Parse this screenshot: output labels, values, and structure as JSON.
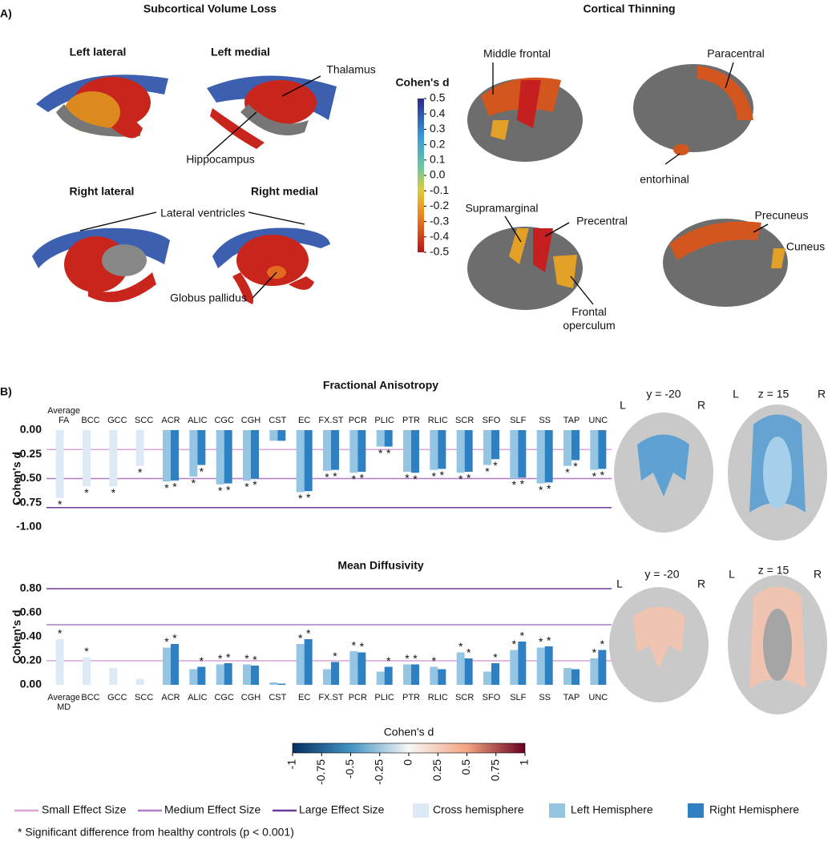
{
  "panel_a": {
    "label": "A)",
    "subcortical": {
      "title": "Subcortical Volume Loss",
      "views": [
        "Left lateral",
        "Left medial",
        "Right lateral",
        "Right medial"
      ],
      "annotations": [
        "Thalamus",
        "Hippocampus",
        "Lateral ventricles",
        "Globus pallidus"
      ]
    },
    "cortical": {
      "title": "Cortical Thinning",
      "annotations": [
        "Middle frontal",
        "Paracentral",
        "entorhinal",
        "Supramarginal",
        "Precentral",
        "Frontal operculum",
        "Precuneus",
        "Cuneus"
      ]
    },
    "colorbar": {
      "title": "Cohen's d",
      "lim": [
        -0.5,
        0.5
      ],
      "ticks": [
        0.5,
        0.4,
        0.3,
        0.2,
        0.1,
        {
          "value": 0,
          "label": "0.0"
        },
        -0.1,
        -0.2,
        -0.3,
        -0.4,
        -0.5
      ]
    }
  },
  "panel_b": {
    "label": "B)",
    "maps": [
      {
        "view": "y = -20",
        "left": "L",
        "right": "R"
      },
      {
        "view": "z = 15",
        "left": "L",
        "right": "R"
      },
      {
        "view": "y = -20",
        "left": "L",
        "right": "R"
      },
      {
        "view": "z = 15",
        "left": "L",
        "right": "R"
      }
    ],
    "colorbar": {
      "title": "Cohen's d",
      "lim": [
        -1,
        1
      ],
      "ticks": [
        -1,
        -0.75,
        -0.5,
        -0.25,
        0,
        0.25,
        0.5,
        0.75,
        1
      ]
    }
  },
  "significance_marker": "*",
  "significance_note": "* Significant difference from healthy controls (p < 0.001)",
  "chart_data": [
    {
      "type": "bar",
      "title": "Fractional Anisotropy",
      "ylabel": "Cohen's d",
      "categories": [
        "Average FA",
        "BCC",
        "GCC",
        "SCC",
        "ACR",
        "ALIC",
        "CGC",
        "CGH",
        "CST",
        "EC",
        "FX.ST",
        "PCR",
        "PLIC",
        "PTR",
        "RLIC",
        "SCR",
        "SFO",
        "SLF",
        "SS",
        "TAP",
        "UNC"
      ],
      "ylim": [
        -1,
        0
      ],
      "yticks": [
        {
          "value": 0,
          "label": "0.00"
        },
        -0.25,
        {
          "value": -0.5,
          "label": "-0.50"
        },
        -0.75,
        {
          "value": -1,
          "label": "-1.00"
        }
      ],
      "reference_lines": [
        {
          "name": "Small Effect Size",
          "value": -0.2,
          "color": "#d9a3d6"
        },
        {
          "name": "Medium Effect Size",
          "value": -0.5,
          "color": "#b07cc6"
        },
        {
          "name": "Large Effect Size",
          "value": -0.8,
          "color": "#6b3a9c"
        }
      ],
      "series": [
        {
          "name": "Cross hemisphere",
          "color": "#dde9f4",
          "values": [
            -0.7,
            -0.58,
            -0.58,
            -0.37,
            null,
            null,
            null,
            null,
            null,
            null,
            null,
            null,
            null,
            null,
            null,
            null,
            null,
            null,
            null,
            null,
            null
          ],
          "significant": [
            true,
            true,
            true,
            true,
            false,
            false,
            false,
            false,
            false,
            false,
            false,
            false,
            false,
            false,
            false,
            false,
            false,
            false,
            false,
            false,
            false
          ]
        },
        {
          "name": "Left Hemisphere",
          "color": "#94c6e4",
          "values": [
            null,
            null,
            null,
            null,
            -0.53,
            -0.48,
            -0.56,
            -0.52,
            -0.11,
            -0.64,
            -0.42,
            -0.44,
            -0.17,
            -0.43,
            -0.41,
            -0.44,
            -0.36,
            -0.5,
            -0.55,
            -0.37,
            -0.41
          ],
          "significant": [
            false,
            false,
            false,
            false,
            true,
            true,
            true,
            true,
            false,
            true,
            true,
            true,
            true,
            true,
            true,
            true,
            true,
            true,
            true,
            true,
            true
          ]
        },
        {
          "name": "Right Hemisphere",
          "color": "#2f80c3",
          "values": [
            null,
            null,
            null,
            null,
            -0.52,
            -0.36,
            -0.55,
            -0.5,
            -0.11,
            -0.63,
            -0.41,
            -0.43,
            -0.17,
            -0.44,
            -0.4,
            -0.43,
            -0.3,
            -0.49,
            -0.54,
            -0.31,
            -0.4
          ],
          "significant": [
            false,
            false,
            false,
            false,
            true,
            true,
            true,
            true,
            false,
            true,
            true,
            true,
            true,
            true,
            true,
            true,
            true,
            true,
            true,
            true,
            true
          ]
        }
      ]
    },
    {
      "type": "bar",
      "title": "Mean Diffusivity",
      "ylabel": "Cohen's d",
      "categories": [
        "Average MD",
        "BCC",
        "GCC",
        "SCC",
        "ACR",
        "ALIC",
        "CGC",
        "CGH",
        "CST",
        "EC",
        "FX.ST",
        "PCR",
        "PLIC",
        "PTR",
        "RLIC",
        "SCR",
        "SFO",
        "SLF",
        "SS",
        "TAP",
        "UNC"
      ],
      "ylim": [
        0,
        0.8
      ],
      "yticks": [
        {
          "value": 0,
          "label": "0.00"
        },
        {
          "value": 0.2,
          "label": "0.20"
        },
        {
          "value": 0.4,
          "label": "0.40"
        },
        {
          "value": 0.6,
          "label": "0.60"
        },
        {
          "value": 0.8,
          "label": "0.80"
        }
      ],
      "reference_lines": [
        {
          "value": 0.2,
          "color": "#d9a3d6"
        },
        {
          "value": 0.5,
          "color": "#b07cc6"
        },
        {
          "value": 0.8,
          "color": "#6b3a9c"
        }
      ],
      "series": [
        {
          "color": "#dde9f4",
          "values": [
            0.38,
            0.23,
            0.14,
            0.05,
            null,
            null,
            null,
            null,
            null,
            null,
            null,
            null,
            null,
            null,
            null,
            null,
            null,
            null,
            null,
            null,
            null
          ],
          "significant": [
            true,
            true,
            false,
            false,
            false,
            false,
            false,
            false,
            false,
            false,
            false,
            false,
            false,
            false,
            false,
            false,
            false,
            false,
            false,
            false,
            false
          ]
        },
        {
          "color": "#94c6e4",
          "values": [
            null,
            null,
            null,
            null,
            0.31,
            0.13,
            0.17,
            0.17,
            0.02,
            0.34,
            0.13,
            0.28,
            0.11,
            0.17,
            0.15,
            0.27,
            0.11,
            0.29,
            0.31,
            0.14,
            0.22
          ],
          "significant": [
            false,
            false,
            false,
            false,
            true,
            false,
            true,
            true,
            false,
            true,
            false,
            true,
            false,
            true,
            true,
            true,
            false,
            true,
            true,
            false,
            true
          ]
        },
        {
          "color": "#2f80c3",
          "values": [
            null,
            null,
            null,
            null,
            0.34,
            0.15,
            0.18,
            0.16,
            0.01,
            0.38,
            0.19,
            0.27,
            0.15,
            0.17,
            0.13,
            0.22,
            0.18,
            0.36,
            0.32,
            0.13,
            0.29
          ],
          "significant": [
            false,
            false,
            false,
            false,
            true,
            true,
            true,
            true,
            false,
            true,
            true,
            true,
            true,
            true,
            false,
            true,
            true,
            true,
            true,
            false,
            true
          ]
        }
      ]
    }
  ]
}
